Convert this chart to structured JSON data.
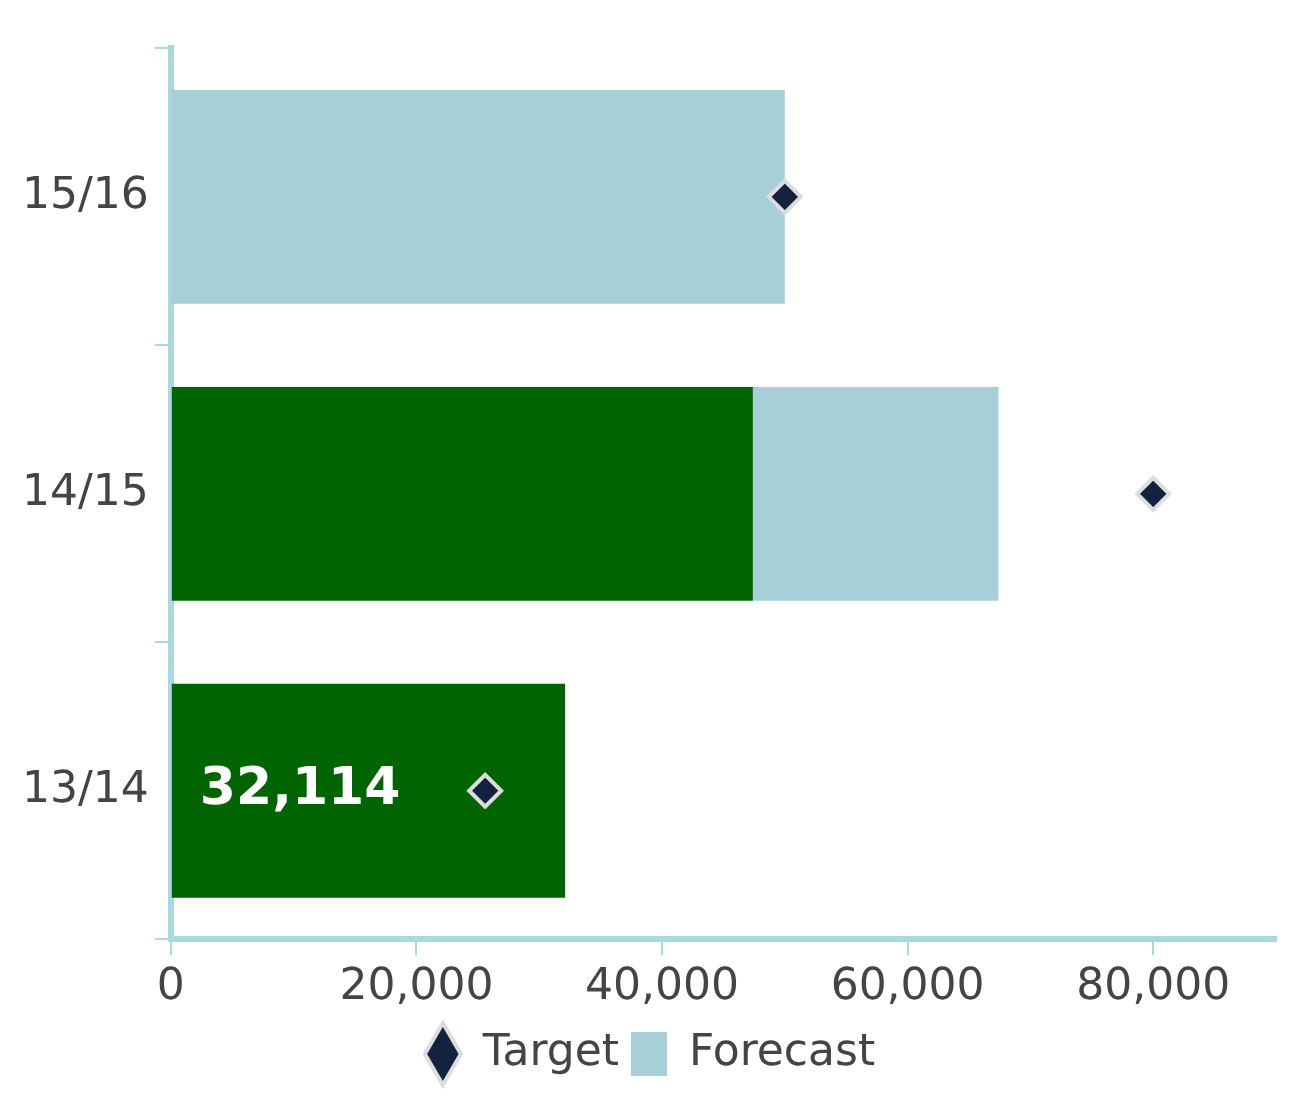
{
  "chart_data": {
    "type": "bar",
    "orientation": "horizontal",
    "stacked": true,
    "categories": [
      "15/16",
      "14/15",
      "13/14"
    ],
    "series": [
      {
        "color": "#006400",
        "values": [
          null,
          47400,
          32114
        ],
        "value_labels": [
          null,
          null,
          "32,114"
        ]
      },
      {
        "name": "Forecast",
        "color": "#a6cfd7",
        "values": [
          50000,
          20000,
          null
        ]
      },
      {
        "name": "Target",
        "type": "scatter",
        "marker": "diamond",
        "color": "#13233f",
        "values": [
          50000,
          80000,
          25600
        ]
      }
    ],
    "xlim": [
      0,
      90000
    ],
    "xticks": [
      0,
      {
        "value": 20000,
        "label": "20,000"
      },
      {
        "value": 40000,
        "label": "40,000"
      },
      {
        "value": 60000,
        "label": "60,000"
      },
      {
        "value": 80000,
        "label": "80,000"
      }
    ],
    "grid": false,
    "legend": "bottom"
  }
}
